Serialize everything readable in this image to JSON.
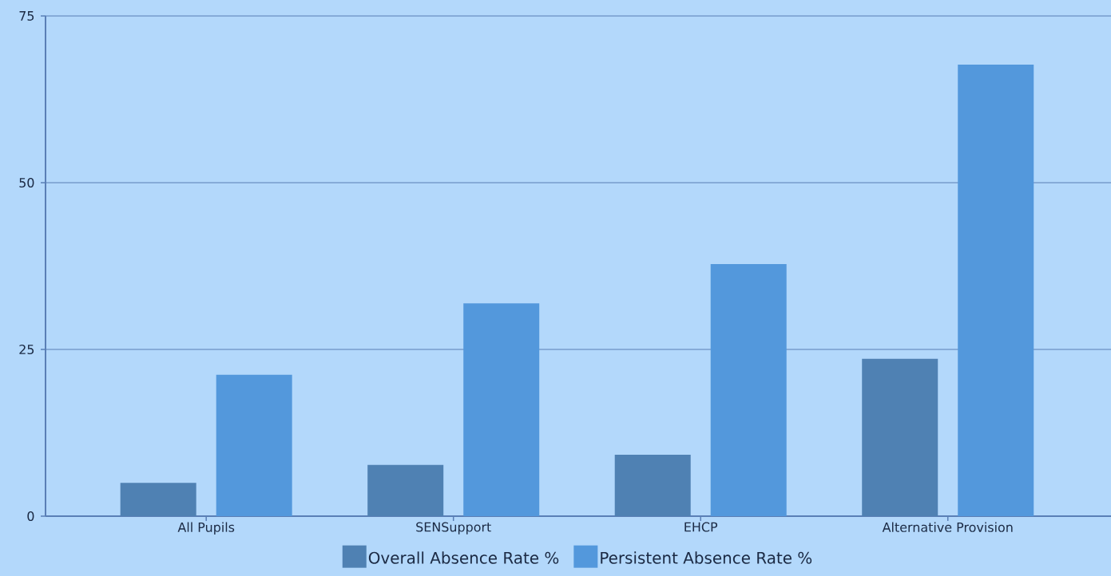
{
  "chart_data": {
    "type": "bar",
    "categories": [
      "All Pupils",
      "SENSupport",
      "EHCP",
      "Alternative Provision"
    ],
    "series": [
      {
        "name": "Overall Absence Rate %",
        "color": "#4f81b3",
        "values": [
          5.0,
          7.7,
          9.2,
          23.6
        ]
      },
      {
        "name": "Persistent Absence Rate %",
        "color": "#5398dc",
        "values": [
          21.2,
          31.9,
          37.8,
          67.7
        ]
      }
    ],
    "ylim": [
      0,
      75
    ],
    "yticks": [
      0,
      25,
      50,
      75
    ],
    "grid": "y",
    "legend": "bottom"
  }
}
